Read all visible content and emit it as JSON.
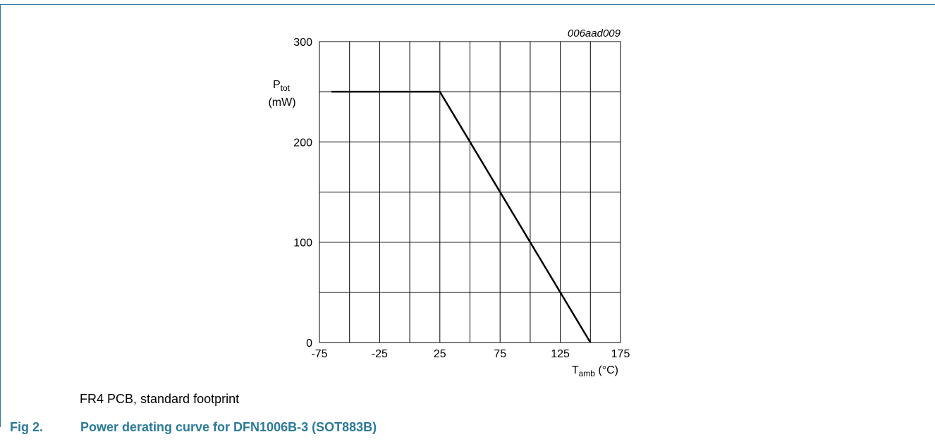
{
  "figure": {
    "code": "006aad009",
    "note": "FR4 PCB, standard footprint",
    "caption_number": "Fig 2.",
    "caption_title": "Power derating curve for DFN1006B-3 (SOT883B)"
  },
  "chart_data": {
    "type": "line",
    "title": "",
    "ylabel_main": "P",
    "ylabel_sub": "tot",
    "ylabel_unit": "(mW)",
    "xlabel_main": "T",
    "xlabel_sub": "amb",
    "xlabel_unit": "(°C)",
    "xlim": [
      -75,
      175
    ],
    "ylim": [
      0,
      300
    ],
    "x_ticks": [
      -75,
      -25,
      25,
      75,
      125,
      175
    ],
    "x_tick_labels": [
      "-75",
      "-25",
      "25",
      "75",
      "125",
      "175"
    ],
    "y_ticks": [
      0,
      100,
      200,
      300
    ],
    "y_tick_labels": [
      "0",
      "100",
      "200",
      "300"
    ],
    "grid": true,
    "grid_x_step": 25,
    "grid_y_step": 50,
    "series": [
      {
        "x": [
          -65,
          25,
          150
        ],
        "y": [
          250,
          250,
          0
        ]
      }
    ]
  }
}
